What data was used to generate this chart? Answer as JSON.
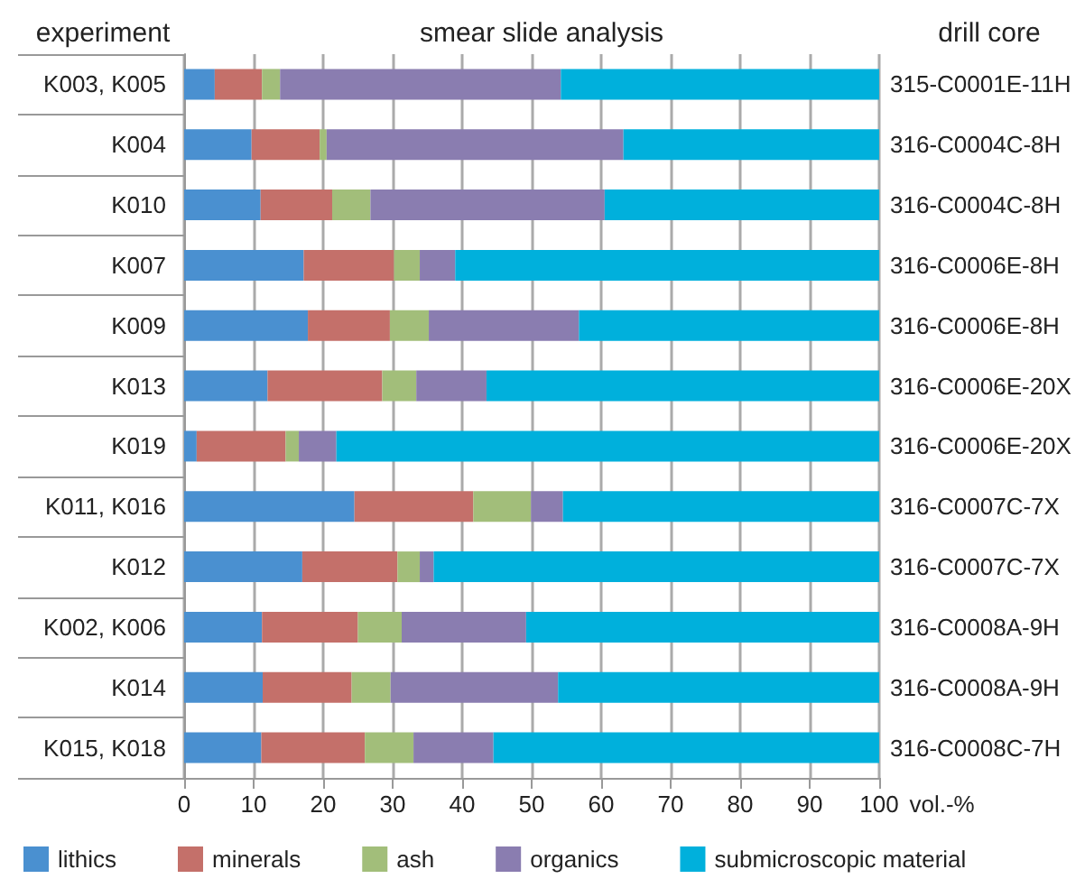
{
  "chart_data": {
    "type": "bar",
    "orientation": "horizontal",
    "stacked": true,
    "title": "smear slide analysis",
    "ylabel": "experiment",
    "y2label": "drill core",
    "xlabel": "vol.-%",
    "categories": [
      "K003, K005",
      "K004",
      "K010",
      "K007",
      "K009",
      "K013",
      "K019",
      "K011, K016",
      "K012",
      "K002, K006",
      "K014",
      "K015, K018"
    ],
    "y2_categories": [
      "315-C0001E-11H",
      "316-C0004C-8H",
      "316-C0004C-8H",
      "316-C0006E-8H",
      "316-C0006E-8H",
      "316-C0006E-20X",
      "316-C0006E-20X",
      "316-C0007C-7X",
      "316-C0007C-7X",
      "316-C0008A-9H",
      "316-C0008A-9H",
      "316-C0008C-7H"
    ],
    "series": [
      {
        "name": "lithics",
        "color": "#4a90d0",
        "values": [
          4.4,
          9.7,
          11.0,
          17.2,
          17.8,
          12.0,
          1.8,
          24.5,
          17.0,
          11.2,
          11.3,
          11.1
        ]
      },
      {
        "name": "minerals",
        "color": "#c4706a",
        "values": [
          6.8,
          9.8,
          10.3,
          13.0,
          11.8,
          16.5,
          12.8,
          17.1,
          13.7,
          13.8,
          12.8,
          14.9
        ]
      },
      {
        "name": "ash",
        "color": "#a2be7a",
        "values": [
          2.6,
          1.0,
          5.5,
          3.7,
          5.6,
          4.9,
          1.9,
          8.3,
          3.2,
          6.3,
          5.6,
          7.0
        ]
      },
      {
        "name": "organics",
        "color": "#8a7db0",
        "values": [
          40.4,
          42.7,
          33.7,
          5.1,
          21.6,
          10.1,
          5.4,
          4.6,
          2.0,
          17.9,
          24.1,
          11.5
        ]
      },
      {
        "name": "submicroscopic material",
        "color": "#00b0dc",
        "values": [
          45.8,
          36.8,
          39.5,
          61.0,
          43.2,
          56.5,
          78.1,
          45.5,
          64.1,
          50.8,
          46.2,
          55.5
        ]
      }
    ],
    "xlim": [
      0,
      100
    ],
    "xticks": [
      0,
      10,
      20,
      30,
      40,
      50,
      60,
      70,
      80,
      90,
      100
    ],
    "grid": "x",
    "legend": "bottom"
  }
}
